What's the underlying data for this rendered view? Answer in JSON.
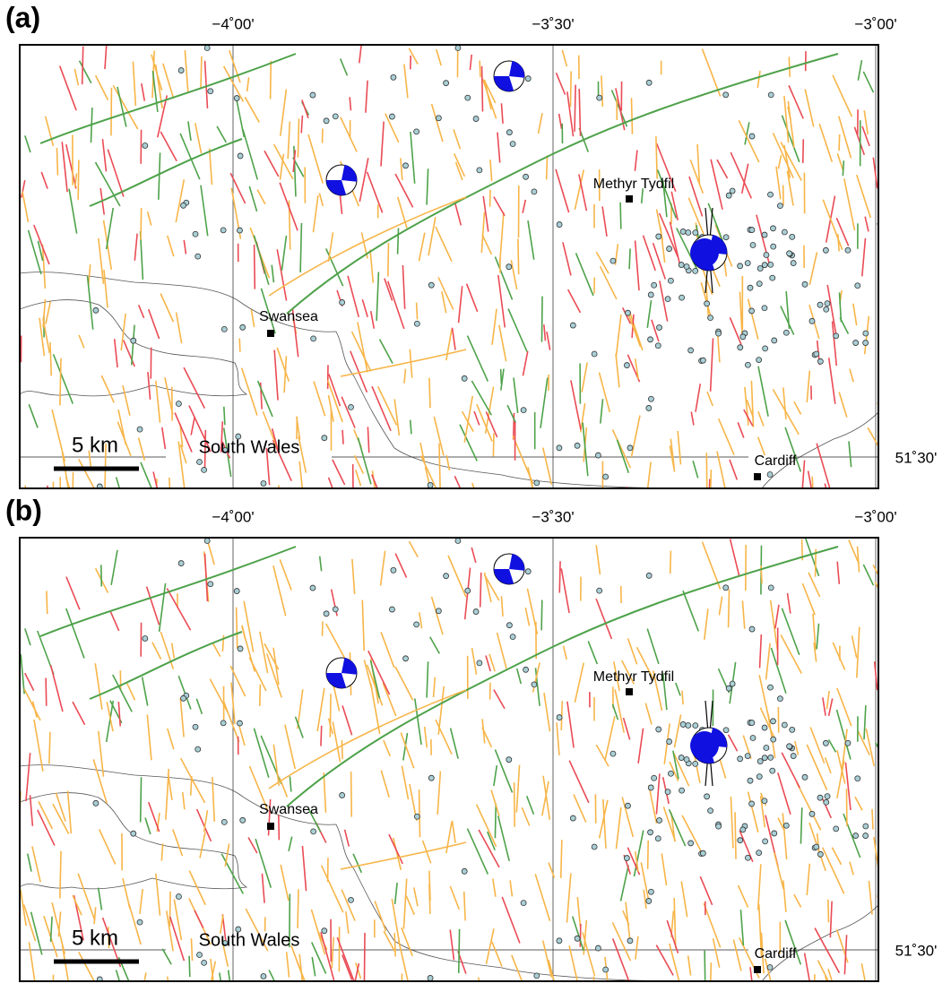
{
  "panels": [
    {
      "label": "(a)",
      "lon_ticks": [
        "−4˚00'",
        "−3˚30'",
        "−3˚00'"
      ],
      "lat_tick": "51˚30'",
      "places": [
        "Methyr Tydfil",
        "Swansea",
        "Cardiff"
      ],
      "region": "South Wales",
      "scale": "5 km"
    },
    {
      "label": "(b)",
      "lon_ticks": [
        "−4˚00'",
        "−3˚30'",
        "−3˚00'"
      ],
      "lat_tick": "51˚30'",
      "places": [
        "Methyr Tydfil",
        "Swansea",
        "Cardiff"
      ],
      "region": "South Wales",
      "scale": "5 km"
    }
  ]
}
